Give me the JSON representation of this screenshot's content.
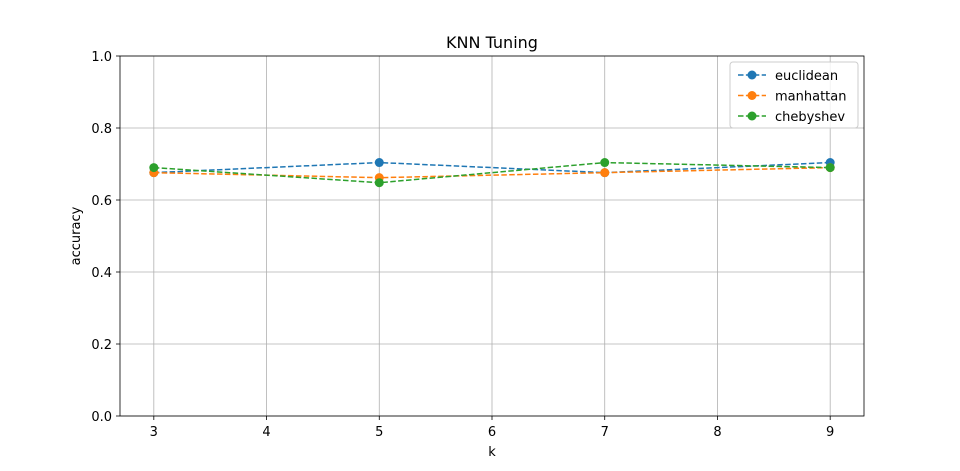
{
  "chart_data": {
    "type": "line",
    "title": "KNN Tuning",
    "xlabel": "k",
    "ylabel": "accuracy",
    "xlim": [
      2.7,
      9.3
    ],
    "ylim": [
      0.0,
      1.0
    ],
    "xticks": [
      3,
      4,
      5,
      6,
      7,
      8,
      9
    ],
    "yticks": [
      0.0,
      0.2,
      0.4,
      0.6,
      0.8,
      1.0
    ],
    "grid": true,
    "legend_position": "top-right",
    "x": [
      3,
      5,
      7,
      9
    ],
    "series": [
      {
        "name": "euclidean",
        "color": "#1f77b4",
        "values": [
          0.676,
          0.704,
          0.676,
          0.704
        ]
      },
      {
        "name": "manhattan",
        "color": "#ff7f0e",
        "values": [
          0.676,
          0.662,
          0.676,
          0.69
        ]
      },
      {
        "name": "chebyshev",
        "color": "#2ca02c",
        "values": [
          0.69,
          0.648,
          0.704,
          0.69
        ]
      }
    ]
  }
}
